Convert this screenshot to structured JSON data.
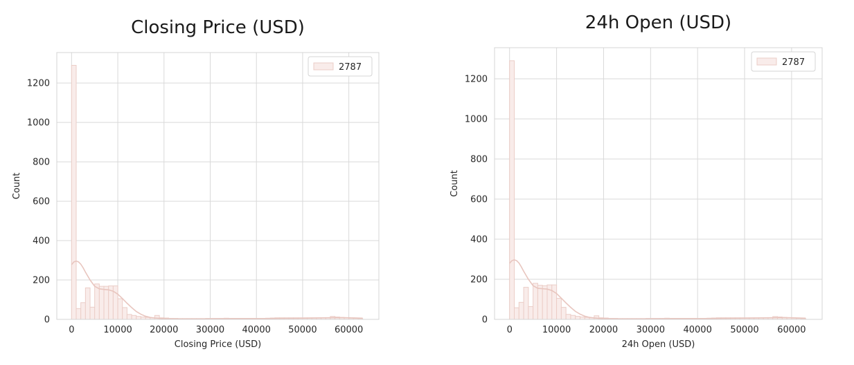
{
  "colors": {
    "bar_fill": "#f9ecea",
    "bar_edge": "#ebcdc7",
    "kde_line": "#e8c5be",
    "grid": "#d9d9d9",
    "frame": "#d4d4d4",
    "text": "#262626",
    "title": "#1a1a1a"
  },
  "chart_data": [
    {
      "type": "histogram",
      "title": "Closing Price (USD)",
      "xlabel": "Closing Price (USD)",
      "ylabel": "Count",
      "xlim": [
        -3200,
        66500
      ],
      "ylim": [
        0,
        1355
      ],
      "xticks": [
        0,
        10000,
        20000,
        30000,
        40000,
        50000,
        60000
      ],
      "yticks": [
        0,
        200,
        400,
        600,
        800,
        1000,
        1200
      ],
      "grid": true,
      "legend": {
        "position": "top-right",
        "entries": [
          "2787"
        ]
      },
      "bin_edges": [
        0,
        1000,
        2000,
        3000,
        4000,
        5000,
        6000,
        7000,
        8000,
        9000,
        10000,
        11000,
        12000,
        13000,
        14000,
        15000,
        16000,
        17000,
        18000,
        19000,
        20000,
        21000,
        22000,
        23000,
        24000,
        25000,
        26000,
        27000,
        28000,
        29000,
        30000,
        31000,
        32000,
        33000,
        34000,
        35000,
        36000,
        37000,
        38000,
        39000,
        40000,
        41000,
        42000,
        43000,
        44000,
        45000,
        46000,
        47000,
        48000,
        49000,
        50000,
        51000,
        52000,
        53000,
        54000,
        55000,
        56000,
        57000,
        58000,
        59000,
        60000,
        61000,
        62000,
        63000
      ],
      "counts": [
        1290,
        55,
        85,
        160,
        62,
        180,
        168,
        168,
        170,
        170,
        105,
        60,
        25,
        20,
        15,
        12,
        10,
        8,
        20,
        8,
        7,
        5,
        5,
        4,
        4,
        4,
        4,
        4,
        4,
        5,
        5,
        5,
        5,
        6,
        5,
        5,
        5,
        5,
        4,
        4,
        4,
        5,
        6,
        7,
        8,
        8,
        8,
        8,
        8,
        8,
        8,
        8,
        8,
        8,
        8,
        8,
        15,
        12,
        10,
        8,
        6,
        5,
        4
      ],
      "kde": {
        "x": [
          0,
          500,
          1000,
          1500,
          2000,
          2500,
          3000,
          4000,
          5000,
          6000,
          7000,
          8000,
          9000,
          10000,
          11000,
          12000,
          13000,
          14000,
          15000,
          16000,
          17000,
          18000,
          19000,
          20000,
          22000,
          25000,
          30000,
          35000,
          40000,
          45000,
          50000,
          55000,
          58000,
          60000,
          63000
        ],
        "y": [
          278,
          292,
          296,
          292,
          280,
          262,
          240,
          200,
          168,
          155,
          152,
          150,
          143,
          128,
          106,
          82,
          60,
          40,
          26,
          16,
          10,
          7,
          5,
          4,
          3,
          3,
          3,
          4,
          4,
          5,
          6,
          8,
          9,
          8,
          6
        ]
      }
    },
    {
      "type": "histogram",
      "title": "24h Open (USD)",
      "xlabel": "24h Open (USD)",
      "ylabel": "Count",
      "xlim": [
        -3200,
        66500
      ],
      "ylim": [
        0,
        1355
      ],
      "xticks": [
        0,
        10000,
        20000,
        30000,
        40000,
        50000,
        60000
      ],
      "yticks": [
        0,
        200,
        400,
        600,
        800,
        1000,
        1200
      ],
      "grid": true,
      "legend": {
        "position": "top-right",
        "entries": [
          "2787"
        ]
      },
      "bin_edges": [
        0,
        1000,
        2000,
        3000,
        4000,
        5000,
        6000,
        7000,
        8000,
        9000,
        10000,
        11000,
        12000,
        13000,
        14000,
        15000,
        16000,
        17000,
        18000,
        19000,
        20000,
        21000,
        22000,
        23000,
        24000,
        25000,
        26000,
        27000,
        28000,
        29000,
        30000,
        31000,
        32000,
        33000,
        34000,
        35000,
        36000,
        37000,
        38000,
        39000,
        40000,
        41000,
        42000,
        43000,
        44000,
        45000,
        46000,
        47000,
        48000,
        49000,
        50000,
        51000,
        52000,
        53000,
        54000,
        55000,
        56000,
        57000,
        58000,
        59000,
        60000,
        61000,
        62000,
        63000
      ],
      "counts": [
        1290,
        58,
        85,
        160,
        64,
        180,
        170,
        168,
        172,
        172,
        105,
        60,
        25,
        20,
        15,
        12,
        10,
        8,
        18,
        8,
        7,
        5,
        5,
        4,
        4,
        4,
        4,
        4,
        4,
        5,
        5,
        5,
        5,
        6,
        5,
        5,
        5,
        5,
        4,
        4,
        4,
        5,
        6,
        7,
        8,
        8,
        8,
        8,
        8,
        8,
        8,
        8,
        8,
        8,
        8,
        8,
        14,
        12,
        10,
        8,
        6,
        5,
        4
      ],
      "kde": {
        "x": [
          0,
          500,
          1000,
          1500,
          2000,
          2500,
          3000,
          4000,
          5000,
          6000,
          7000,
          8000,
          9000,
          10000,
          11000,
          12000,
          13000,
          14000,
          15000,
          16000,
          17000,
          18000,
          19000,
          20000,
          22000,
          25000,
          30000,
          35000,
          40000,
          45000,
          50000,
          55000,
          58000,
          60000,
          63000
        ],
        "y": [
          280,
          293,
          297,
          293,
          281,
          262,
          240,
          200,
          168,
          155,
          153,
          151,
          144,
          129,
          106,
          82,
          60,
          40,
          26,
          16,
          10,
          7,
          5,
          4,
          3,
          3,
          3,
          4,
          4,
          5,
          6,
          8,
          9,
          8,
          6
        ]
      }
    }
  ]
}
